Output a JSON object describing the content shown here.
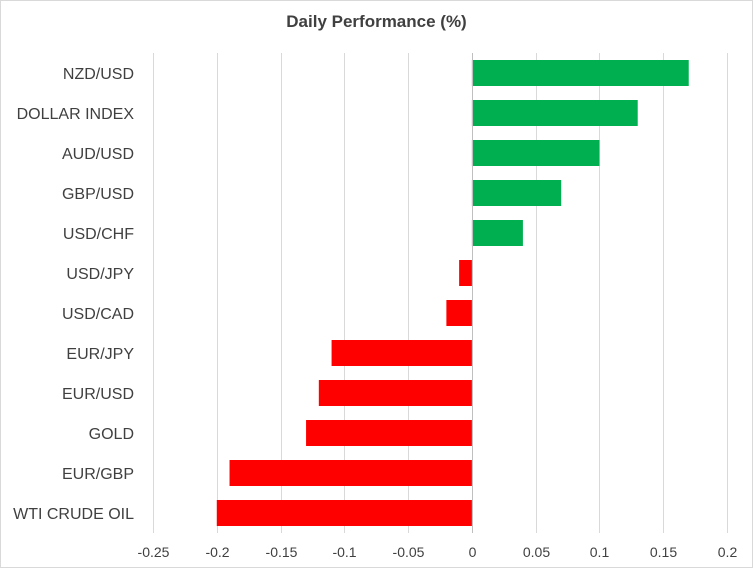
{
  "chart_data": {
    "type": "bar",
    "orientation": "horizontal",
    "title": "Daily Performance (%)",
    "xlabel": "",
    "ylabel": "",
    "categories": [
      "NZD/USD",
      "DOLLAR INDEX",
      "AUD/USD",
      "GBP/USD",
      "USD/CHF",
      "USD/JPY",
      "USD/CAD",
      "EUR/JPY",
      "EUR/USD",
      "GOLD",
      "EUR/GBP",
      "WTI CRUDE OIL"
    ],
    "values": [
      0.17,
      0.13,
      0.1,
      0.07,
      0.04,
      -0.01,
      -0.02,
      -0.11,
      -0.12,
      -0.13,
      -0.19,
      -0.2
    ],
    "xlim": [
      -0.25,
      0.2
    ],
    "ticks": [
      -0.25,
      -0.2,
      -0.15,
      -0.1,
      -0.05,
      0,
      0.05,
      0.1,
      0.15,
      0.2
    ],
    "tick_labels": [
      "-0.25",
      "-0.2",
      "-0.15",
      "-0.1",
      "-0.05",
      "0",
      "0.05",
      "0.1",
      "0.15",
      "0.2"
    ],
    "grid": true,
    "legend": "none",
    "colors": {
      "positive": "#00b050",
      "negative": "#ff0000",
      "grid": "#d9d9d9",
      "axis": "#bfbfbf"
    }
  }
}
